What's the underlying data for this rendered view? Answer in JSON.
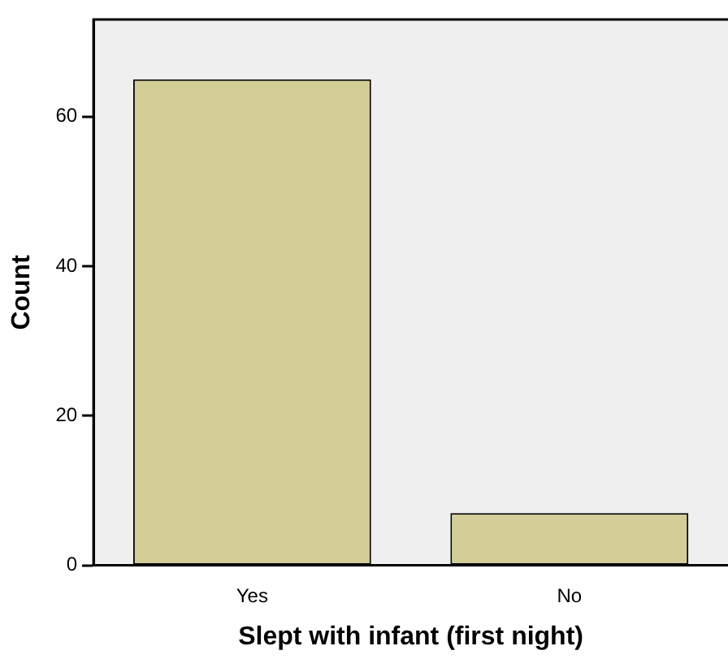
{
  "chart_data": {
    "type": "bar",
    "xlabel": "Slept with infant (first night)",
    "ylabel": "Count",
    "categories": [
      "Yes",
      "No"
    ],
    "values": [
      65,
      7
    ],
    "color": "#d3ce97",
    "ylim": [
      0,
      73
    ],
    "yticks": [
      0,
      20,
      40,
      60
    ],
    "grid": false,
    "legend": false
  }
}
